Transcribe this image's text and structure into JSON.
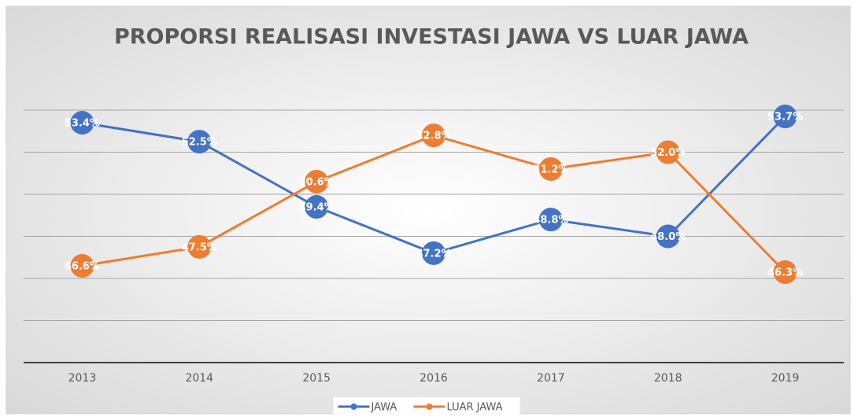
{
  "chart_data": {
    "type": "line",
    "title": "PROPORSI REALISASI INVESTASI JAWA VS LUAR JAWA",
    "categories": [
      "2013",
      "2014",
      "2015",
      "2016",
      "2017",
      "2018",
      "2019"
    ],
    "series": [
      {
        "name": "JAWA",
        "color": "#4472c4",
        "values": [
          53.4,
          52.5,
          49.4,
          47.2,
          48.8,
          48.0,
          53.7
        ],
        "value_labels": [
          "53.4%",
          "52.5%",
          "49.4%",
          "47.2%",
          "48.8%",
          "48.0%",
          "53.7%"
        ]
      },
      {
        "name": "LUAR JAWA",
        "color": "#ed7d31",
        "values": [
          46.6,
          47.5,
          50.6,
          52.8,
          51.2,
          52.0,
          46.3
        ],
        "value_labels": [
          "46.6%",
          "47.5%",
          "50.6%",
          "52.8%",
          "51.2%",
          "52.0%",
          "46.3%"
        ]
      }
    ],
    "ylim": [
      42,
      54
    ],
    "yticks": [
      42,
      44,
      46,
      48,
      50,
      52,
      54
    ],
    "grid": true,
    "legend": "bottom"
  }
}
